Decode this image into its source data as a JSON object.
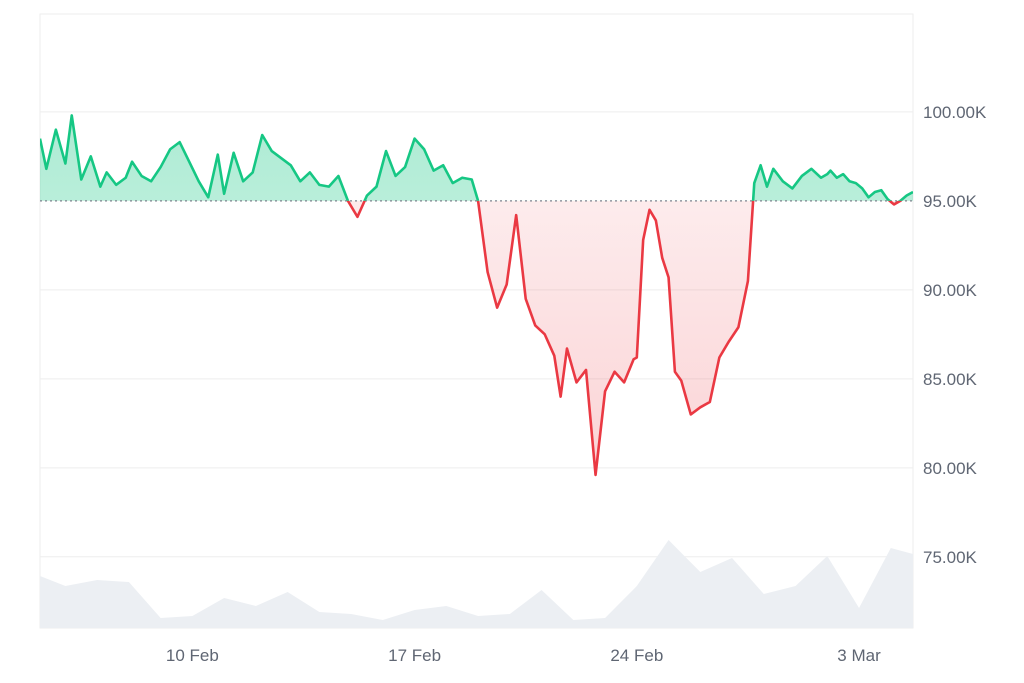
{
  "chart_data": {
    "type": "area",
    "title": "",
    "xlabel": "",
    "ylabel": "",
    "ylim": [
      71000,
      105500
    ],
    "baseline": 95000,
    "y_ticks": [
      {
        "value": 100000,
        "label": "100.00K"
      },
      {
        "value": 95000,
        "label": "95.00K"
      },
      {
        "value": 90000,
        "label": "90.00K"
      },
      {
        "value": 85000,
        "label": "85.00K"
      },
      {
        "value": 80000,
        "label": "80.00K"
      },
      {
        "value": 75000,
        "label": "75.00K"
      }
    ],
    "x_ticks": [
      {
        "label": "10 Feb",
        "day": 10
      },
      {
        "label": "17 Feb",
        "day": 17
      },
      {
        "label": "24 Feb",
        "day": 24
      },
      {
        "label": "3 Mar",
        "day": 31
      }
    ],
    "colors": {
      "above": "#16c784",
      "below": "#ea3943",
      "volume": "#eceff3",
      "grid": "#eeeeee"
    },
    "price_series": {
      "x": [
        5.2,
        5.4,
        5.7,
        6.0,
        6.2,
        6.5,
        6.8,
        7.1,
        7.3,
        7.6,
        7.9,
        8.1,
        8.4,
        8.7,
        9.0,
        9.3,
        9.6,
        9.9,
        10.2,
        10.5,
        10.8,
        11.0,
        11.3,
        11.6,
        11.9,
        12.2,
        12.5,
        12.8,
        13.1,
        13.4,
        13.7,
        14.0,
        14.3,
        14.6,
        14.9,
        15.2,
        15.5,
        15.8,
        16.1,
        16.4,
        16.7,
        17.0,
        17.3,
        17.6,
        17.9,
        18.2,
        18.5,
        18.8,
        19.0,
        19.3,
        19.6,
        19.9,
        20.2,
        20.5,
        20.8,
        21.1,
        21.4,
        21.6,
        21.8,
        22.1,
        22.4,
        22.7,
        23.0,
        23.3,
        23.6,
        23.9,
        24.0,
        24.2,
        24.4,
        24.6,
        24.8,
        25.0,
        25.2,
        25.4,
        25.7,
        26.0,
        26.3,
        26.6,
        26.9,
        27.2,
        27.5,
        27.7,
        27.9,
        28.1,
        28.3,
        28.6,
        28.9,
        29.2,
        29.5,
        29.8,
        30.0,
        30.1,
        30.3,
        30.5,
        30.7,
        30.9,
        31.1,
        31.3,
        31.5,
        31.7,
        31.9,
        32.1,
        32.3,
        32.5,
        32.7
      ],
      "y": [
        98500,
        96800,
        99000,
        97100,
        99800,
        96200,
        97500,
        95800,
        96600,
        95900,
        96300,
        97200,
        96400,
        96100,
        96900,
        97900,
        98300,
        97200,
        96100,
        95200,
        97600,
        95400,
        97700,
        96100,
        96600,
        98700,
        97800,
        97400,
        97000,
        96100,
        96600,
        95900,
        95800,
        96400,
        95000,
        94100,
        95300,
        95800,
        97800,
        96400,
        96900,
        98500,
        97900,
        96700,
        97000,
        96000,
        96300,
        96200,
        95000,
        91000,
        89000,
        90300,
        94200,
        89500,
        88000,
        87500,
        86300,
        84000,
        86700,
        84800,
        85500,
        79600,
        84300,
        85400,
        84800,
        86100,
        86200,
        92800,
        94500,
        93900,
        91800,
        90700,
        85400,
        84900,
        83000,
        83400,
        83700,
        86200,
        87100,
        87900,
        90500,
        96000,
        97000,
        95800,
        96800,
        96100,
        95700,
        96400,
        96800,
        96300,
        96500,
        96700,
        96300,
        96500,
        96100,
        96000,
        95700,
        95200,
        95500,
        95600,
        95100,
        94800,
        95000,
        95300,
        95500
      ]
    },
    "volume_series": {
      "x": [
        5.2,
        6.0,
        7.0,
        8.0,
        9.0,
        10.0,
        11.0,
        12.0,
        13.0,
        14.0,
        15.0,
        16.0,
        17.0,
        18.0,
        19.0,
        20.0,
        21.0,
        22.0,
        23.0,
        24.0,
        25.0,
        26.0,
        27.0,
        28.0,
        29.0,
        30.0,
        31.0,
        32.0,
        32.7
      ],
      "y": [
        0.52,
        0.42,
        0.48,
        0.46,
        0.1,
        0.12,
        0.3,
        0.22,
        0.36,
        0.16,
        0.14,
        0.08,
        0.18,
        0.22,
        0.12,
        0.14,
        0.38,
        0.08,
        0.1,
        0.42,
        0.88,
        0.56,
        0.7,
        0.34,
        0.42,
        0.72,
        0.2,
        0.8,
        0.74
      ]
    }
  }
}
